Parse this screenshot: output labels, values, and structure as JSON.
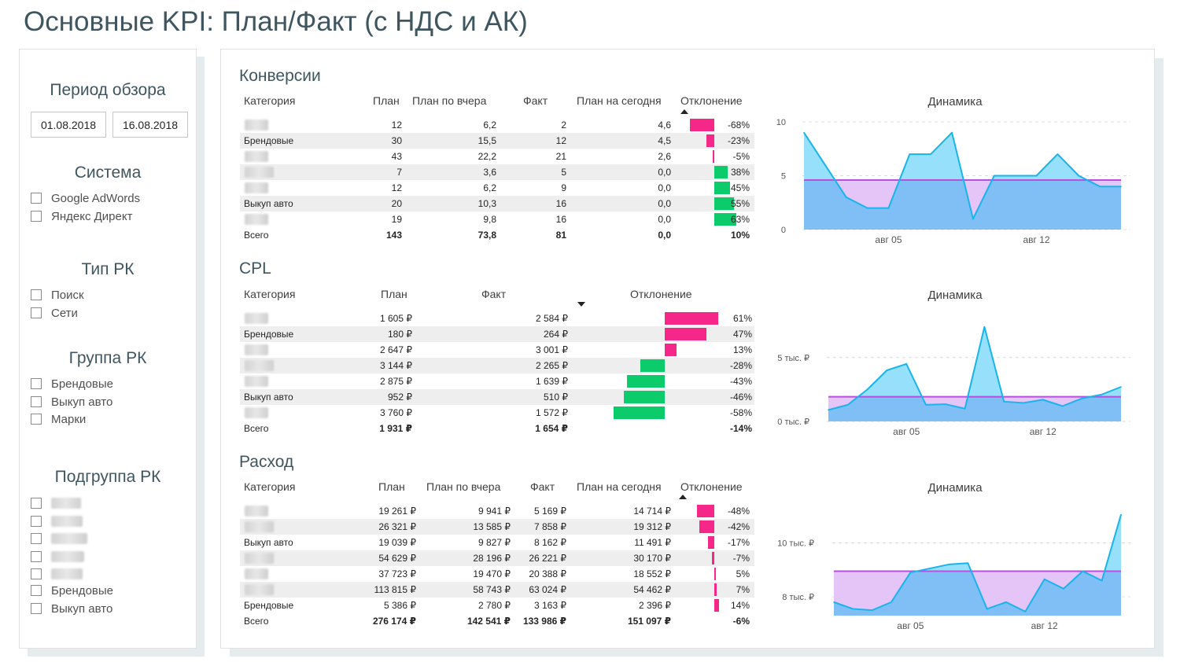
{
  "page": {
    "title": "Основные KPI: План/Факт (с НДС и АК)"
  },
  "slicers": {
    "period": {
      "title": "Период обзора",
      "from": "01.08.2018",
      "to": "16.08.2018"
    },
    "system": {
      "title": "Система",
      "items": [
        "Google AdWords",
        "Яндекс Директ"
      ]
    },
    "rk_type": {
      "title": "Тип РК",
      "items": [
        "Поиск",
        "Сети"
      ]
    },
    "rk_group": {
      "title": "Группа РК",
      "items": [
        "Брендовые",
        "Выкуп авто",
        "Марки"
      ]
    },
    "rk_subgroup": {
      "title": "Подгруппа РК",
      "items": [
        "",
        "",
        "",
        "",
        "",
        "Брендовые",
        "Выкуп авто"
      ]
    }
  },
  "colors": {
    "accent_pink": "#f5288a",
    "accent_green": "#0ccb6b",
    "area_blue": "#7fbff5",
    "line_cyan": "#18b4ec",
    "plan_purple": "#b84fe0",
    "plan_fill": "#e5c5f7",
    "above_fill": "#97e0fb"
  },
  "conversions": {
    "title": "Конверсии",
    "headers": [
      "Категория",
      "План",
      "План по вчера",
      "Факт",
      "План на сегодня",
      "Отклонение"
    ],
    "rows": [
      {
        "cat": "",
        "plan": "12",
        "plan_y": "6,2",
        "fact": "2",
        "plan_t": "4,6",
        "dev": "-68%",
        "dev_val": -68
      },
      {
        "cat": "Брендовые",
        "plan": "30",
        "plan_y": "15,5",
        "fact": "12",
        "plan_t": "4,5",
        "dev": "-23%",
        "dev_val": -23
      },
      {
        "cat": "",
        "plan": "43",
        "plan_y": "22,2",
        "fact": "21",
        "plan_t": "2,6",
        "dev": "-5%",
        "dev_val": -5
      },
      {
        "cat": "",
        "plan": "7",
        "plan_y": "3,6",
        "fact": "5",
        "plan_t": "0,0",
        "dev": "38%",
        "dev_val": 38
      },
      {
        "cat": "",
        "plan": "12",
        "plan_y": "6,2",
        "fact": "9",
        "plan_t": "0,0",
        "dev": "45%",
        "dev_val": 45
      },
      {
        "cat": "Выкуп авто",
        "plan": "20",
        "plan_y": "10,3",
        "fact": "16",
        "plan_t": "0,0",
        "dev": "55%",
        "dev_val": 55
      },
      {
        "cat": "",
        "plan": "19",
        "plan_y": "9,8",
        "fact": "16",
        "plan_t": "0,0",
        "dev": "63%",
        "dev_val": 63
      }
    ],
    "total": {
      "cat": "Всего",
      "plan": "143",
      "plan_y": "73,8",
      "fact": "81",
      "plan_t": "0,0",
      "dev": "10%"
    }
  },
  "cpl": {
    "title": "CPL",
    "headers": [
      "Категория",
      "План",
      "Факт",
      "Отклонение"
    ],
    "rows": [
      {
        "cat": "",
        "plan": "1 605 ₽",
        "fact": "2 584 ₽",
        "dev": "61%",
        "dev_val": 61
      },
      {
        "cat": "Брендовые",
        "plan": "180 ₽",
        "fact": "264 ₽",
        "dev": "47%",
        "dev_val": 47
      },
      {
        "cat": "",
        "plan": "2 647 ₽",
        "fact": "3 001 ₽",
        "dev": "13%",
        "dev_val": 13
      },
      {
        "cat": "",
        "plan": "3 144 ₽",
        "fact": "2 265 ₽",
        "dev": "-28%",
        "dev_val": -28
      },
      {
        "cat": "",
        "plan": "2 875 ₽",
        "fact": "1 639 ₽",
        "dev": "-43%",
        "dev_val": -43
      },
      {
        "cat": "Выкуп авто",
        "plan": "952 ₽",
        "fact": "510 ₽",
        "dev": "-46%",
        "dev_val": -46
      },
      {
        "cat": "",
        "plan": "3 760 ₽",
        "fact": "1 572 ₽",
        "dev": "-58%",
        "dev_val": -58
      }
    ],
    "total": {
      "cat": "Всего",
      "plan": "1 931 ₽",
      "fact": "1 654 ₽",
      "dev": "-14%"
    }
  },
  "spend": {
    "title": "Расход",
    "headers": [
      "Категория",
      "План",
      "План по вчера",
      "Факт",
      "План на сегодня",
      "Отклонение"
    ],
    "rows": [
      {
        "cat": "",
        "plan": "19 261 ₽",
        "plan_y": "9 941 ₽",
        "fact": "5 169 ₽",
        "plan_t": "14 714 ₽",
        "dev": "-48%",
        "dev_val": -48
      },
      {
        "cat": "",
        "plan": "26 321 ₽",
        "plan_y": "13 585 ₽",
        "fact": "7 858 ₽",
        "plan_t": "19 312 ₽",
        "dev": "-42%",
        "dev_val": -42
      },
      {
        "cat": "Выкуп авто",
        "plan": "19 039 ₽",
        "plan_y": "9 827 ₽",
        "fact": "8 162 ₽",
        "plan_t": "11 491 ₽",
        "dev": "-17%",
        "dev_val": -17
      },
      {
        "cat": "",
        "plan": "54 629 ₽",
        "plan_y": "28 196 ₽",
        "fact": "26 221 ₽",
        "plan_t": "30 170 ₽",
        "dev": "-7%",
        "dev_val": -7
      },
      {
        "cat": "",
        "plan": "37 723 ₽",
        "plan_y": "19 470 ₽",
        "fact": "20 388 ₽",
        "plan_t": "18 552 ₽",
        "dev": "5%",
        "dev_val": 5
      },
      {
        "cat": "",
        "plan": "113 815 ₽",
        "plan_y": "58 743 ₽",
        "fact": "63 024 ₽",
        "plan_t": "54 462 ₽",
        "dev": "7%",
        "dev_val": 7
      },
      {
        "cat": "Брендовые",
        "plan": "5 386 ₽",
        "plan_y": "2 780 ₽",
        "fact": "3 163 ₽",
        "plan_t": "2 396 ₽",
        "dev": "14%",
        "dev_val": 14
      }
    ],
    "total": {
      "cat": "Всего",
      "plan": "276 174 ₽",
      "plan_y": "142 541 ₽",
      "fact": "133 986 ₽",
      "plan_t": "151 097 ₽",
      "dev": "-6%"
    }
  },
  "chart_data": [
    {
      "type": "area",
      "title": "Динамика",
      "x": [
        "01.08",
        "02.08",
        "03.08",
        "04.08",
        "05.08",
        "06.08",
        "07.08",
        "08.08",
        "09.08",
        "10.08",
        "11.08",
        "12.08",
        "13.08",
        "14.08",
        "15.08",
        "16.08"
      ],
      "x_tick_labels": [
        "авг 05",
        "авг 12"
      ],
      "series": [
        {
          "values": [
            9,
            6,
            3,
            2,
            2,
            7,
            7,
            9,
            1,
            5,
            5,
            5,
            7,
            5,
            4,
            4
          ]
        },
        {
          "values": [
            4.6,
            4.6,
            4.6,
            4.6,
            4.6,
            4.6,
            4.6,
            4.6,
            4.6,
            4.6,
            4.6,
            4.6,
            4.6,
            4.6,
            4.6,
            4.6
          ]
        }
      ],
      "y_ticks": [
        "0",
        "5",
        "10"
      ],
      "ylim": [
        0,
        10
      ]
    },
    {
      "type": "area",
      "title": "Динамика",
      "x": [
        "01.08",
        "02.08",
        "03.08",
        "04.08",
        "05.08",
        "06.08",
        "07.08",
        "08.08",
        "09.08",
        "10.08",
        "11.08",
        "12.08",
        "13.08",
        "14.08",
        "15.08",
        "16.08"
      ],
      "x_tick_labels": [
        "авг 05",
        "авг 12"
      ],
      "series": [
        {
          "values": [
            900,
            1300,
            2500,
            4000,
            4500,
            1300,
            1350,
            1000,
            7400,
            1550,
            1450,
            1700,
            1200,
            1800,
            2100,
            2700
          ]
        },
        {
          "values": [
            1931,
            1931,
            1931,
            1931,
            1931,
            1931,
            1931,
            1931,
            1931,
            1931,
            1931,
            1931,
            1931,
            1931,
            1931,
            1931
          ]
        }
      ],
      "y_ticks": [
        "0 тыс. ₽",
        "5 тыс. ₽"
      ],
      "ylim": [
        0,
        8000
      ]
    },
    {
      "type": "area",
      "title": "Динамика",
      "x": [
        "01.08",
        "02.08",
        "03.08",
        "04.08",
        "05.08",
        "06.08",
        "07.08",
        "08.08",
        "09.08",
        "10.08",
        "11.08",
        "12.08",
        "13.08",
        "14.08",
        "15.08",
        "16.08"
      ],
      "x_tick_labels": [
        "авг 05",
        "авг 12"
      ],
      "series": [
        {
          "values": [
            7800,
            7550,
            7500,
            7800,
            8900,
            9050,
            9200,
            9250,
            7550,
            7800,
            7450,
            8650,
            8300,
            8950,
            8600,
            11050
          ]
        },
        {
          "values": [
            8950,
            8950,
            8950,
            8950,
            8950,
            8950,
            8950,
            8950,
            8950,
            8950,
            8950,
            8950,
            8950,
            8950,
            8950,
            8950
          ]
        }
      ],
      "y_ticks": [
        "8 тыс. ₽",
        "10 тыс. ₽"
      ],
      "ylim": [
        7300,
        11300
      ]
    }
  ]
}
